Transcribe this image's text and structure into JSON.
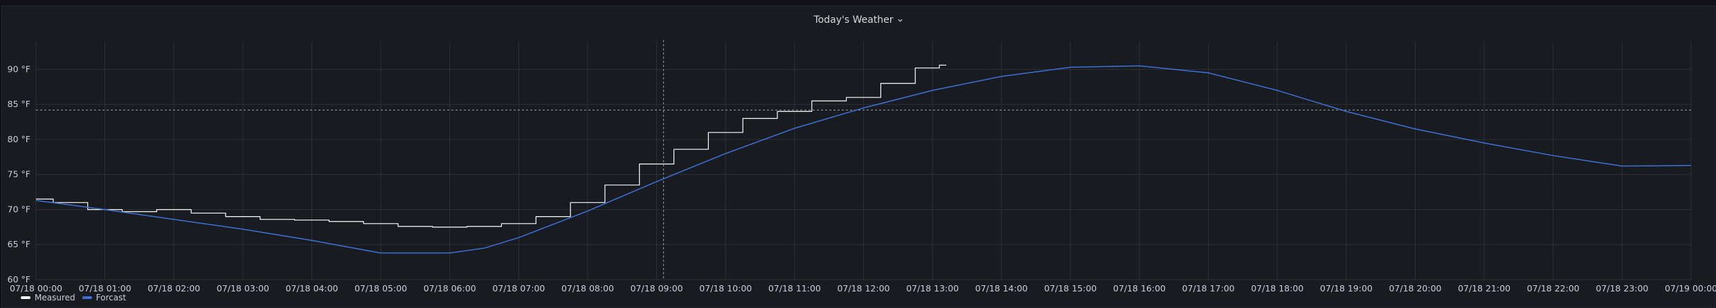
{
  "panel": {
    "title": "Today's Weather",
    "icon": "chevron-down-icon"
  },
  "chart_data": {
    "type": "line",
    "ylim": [
      60,
      93
    ],
    "y_ticks": [
      60,
      65,
      70,
      75,
      80,
      85,
      90
    ],
    "y_unit": "°F",
    "x_ticks": [
      "07/18 00:00",
      "07/18 01:00",
      "07/18 02:00",
      "07/18 03:00",
      "07/18 04:00",
      "07/18 05:00",
      "07/18 06:00",
      "07/18 07:00",
      "07/18 08:00",
      "07/18 09:00",
      "07/18 10:00",
      "07/18 11:00",
      "07/18 12:00",
      "07/18 13:00",
      "07/18 14:00",
      "07/18 15:00",
      "07/18 16:00",
      "07/18 17:00",
      "07/18 18:00",
      "07/18 19:00",
      "07/18 20:00",
      "07/18 21:00",
      "07/18 22:00",
      "07/18 23:00",
      "07/19 00:00"
    ],
    "xlim_hours": [
      0,
      24
    ],
    "grid": true,
    "legend_placement": "bottom-left",
    "threshold": {
      "value": 84.2,
      "style": "dashed"
    },
    "crosshair_hour": 9.1,
    "series": [
      {
        "name": "Measured",
        "color": "#ffffff",
        "x": [
          0,
          0.5,
          1,
          1.5,
          2,
          2.5,
          3,
          3.5,
          4,
          4.5,
          5,
          5.5,
          6,
          6.5,
          7,
          7.5,
          8,
          8.5,
          9,
          9.5,
          10,
          10.5,
          11,
          11.5,
          12,
          12.5,
          13,
          13.2
        ],
        "y": [
          71.5,
          71,
          70,
          69.7,
          70,
          69.5,
          69,
          68.6,
          68.5,
          68.3,
          68,
          67.6,
          67.5,
          67.6,
          68,
          69,
          71,
          73.5,
          76.5,
          78.6,
          81,
          83,
          84,
          85.5,
          86,
          88,
          90.2,
          90.6
        ]
      },
      {
        "name": "Forcast",
        "color": "#3d71d9",
        "x": [
          0,
          1,
          2,
          3,
          4,
          5,
          6,
          6.5,
          7,
          8,
          9,
          10,
          11,
          12,
          13,
          14,
          15,
          16,
          17,
          18,
          19,
          20,
          21,
          22,
          23,
          24
        ],
        "y": [
          71.3,
          70,
          68.6,
          67.2,
          65.6,
          63.8,
          63.8,
          64.5,
          66,
          69.8,
          74,
          78,
          81.6,
          84.5,
          87,
          89,
          90.3,
          90.5,
          89.5,
          87,
          84,
          81.5,
          79.5,
          77.7,
          76.2,
          76.3
        ]
      }
    ]
  }
}
